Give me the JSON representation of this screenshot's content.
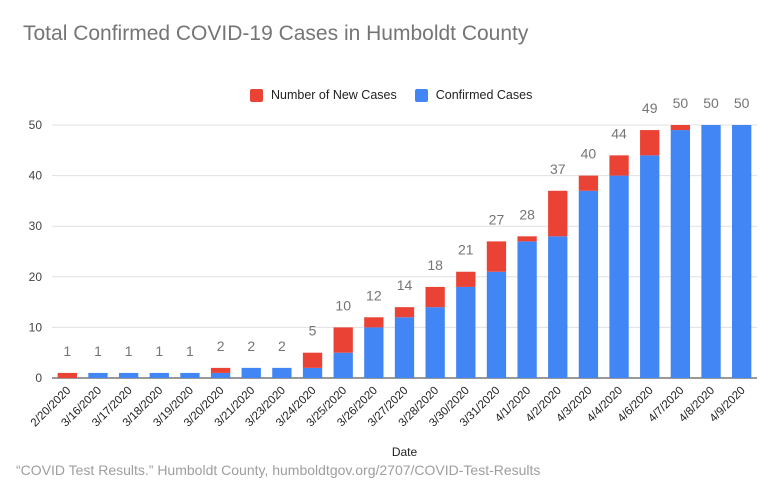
{
  "chart_data": {
    "type": "bar",
    "stacked": true,
    "title": "Total Confirmed COVID-19 Cases in Humboldt County",
    "xlabel": "Date",
    "ylabel": "",
    "ylim": [
      0,
      50
    ],
    "yticks": [
      0,
      10,
      20,
      30,
      40,
      50
    ],
    "grid": true,
    "legend_position": "top",
    "categories": [
      "2/20/2020",
      "3/16/2020",
      "3/17/2020",
      "3/18/2020",
      "3/19/2020",
      "3/20/2020",
      "3/21/2020",
      "3/23/2020",
      "3/24/2020",
      "3/25/2020",
      "3/26/2020",
      "3/27/2020",
      "3/28/2020",
      "3/30/2020",
      "3/31/2020",
      "4/1/2020",
      "4/2/2020",
      "4/3/2020",
      "4/4/2020",
      "4/6/2020",
      "4/7/2020",
      "4/8/2020",
      "4/9/2020"
    ],
    "series": [
      {
        "name": "Confirmed Cases",
        "color": "#4285f4",
        "values": [
          0,
          1,
          1,
          1,
          1,
          1,
          2,
          2,
          2,
          5,
          10,
          12,
          14,
          18,
          21,
          27,
          28,
          37,
          40,
          44,
          49,
          50,
          50
        ]
      },
      {
        "name": "Number of New Cases",
        "color": "#ea4335",
        "values": [
          1,
          0,
          0,
          0,
          0,
          1,
          0,
          0,
          3,
          5,
          2,
          2,
          4,
          3,
          6,
          1,
          9,
          3,
          4,
          5,
          1,
          0,
          0
        ]
      }
    ],
    "totals": [
      1,
      1,
      1,
      1,
      1,
      2,
      2,
      2,
      5,
      10,
      12,
      14,
      18,
      21,
      27,
      28,
      37,
      40,
      44,
      49,
      50,
      50,
      50
    ],
    "legend_order": [
      "Number of New Cases",
      "Confirmed Cases"
    ]
  },
  "source_text": "“COVID Test Results.” Humboldt County, humboldtgov.org/2707/COVID-Test-Results",
  "colors": {
    "title": "#757575",
    "grid": "#e0e0e0",
    "total_label": "#757575",
    "source": "#9e9e9e"
  }
}
